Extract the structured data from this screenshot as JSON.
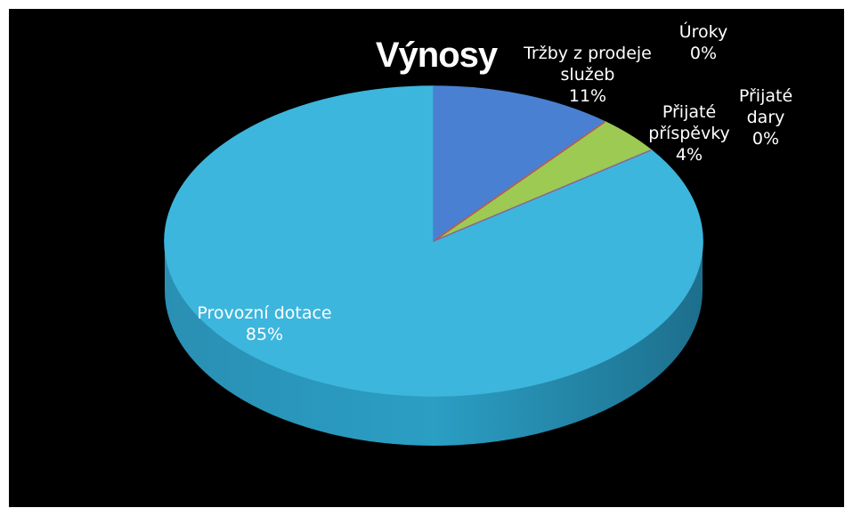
{
  "chart_data": {
    "type": "pie",
    "title": "Výnosy",
    "categories": [
      "Tržby z prodeje služeb",
      "Úroky",
      "Přijaté příspěvky",
      "Přijaté dary",
      "Provozní dotace"
    ],
    "values": [
      11,
      0,
      4,
      0,
      85
    ],
    "value_labels": [
      "11%",
      "0%",
      "4%",
      "0%",
      "85%"
    ],
    "colors": [
      "#4a80d2",
      "#c0504d",
      "#9cca52",
      "#8064a2",
      "#3db6dd"
    ],
    "start_angle": 0,
    "direction": "clockwise",
    "three_d": true
  }
}
